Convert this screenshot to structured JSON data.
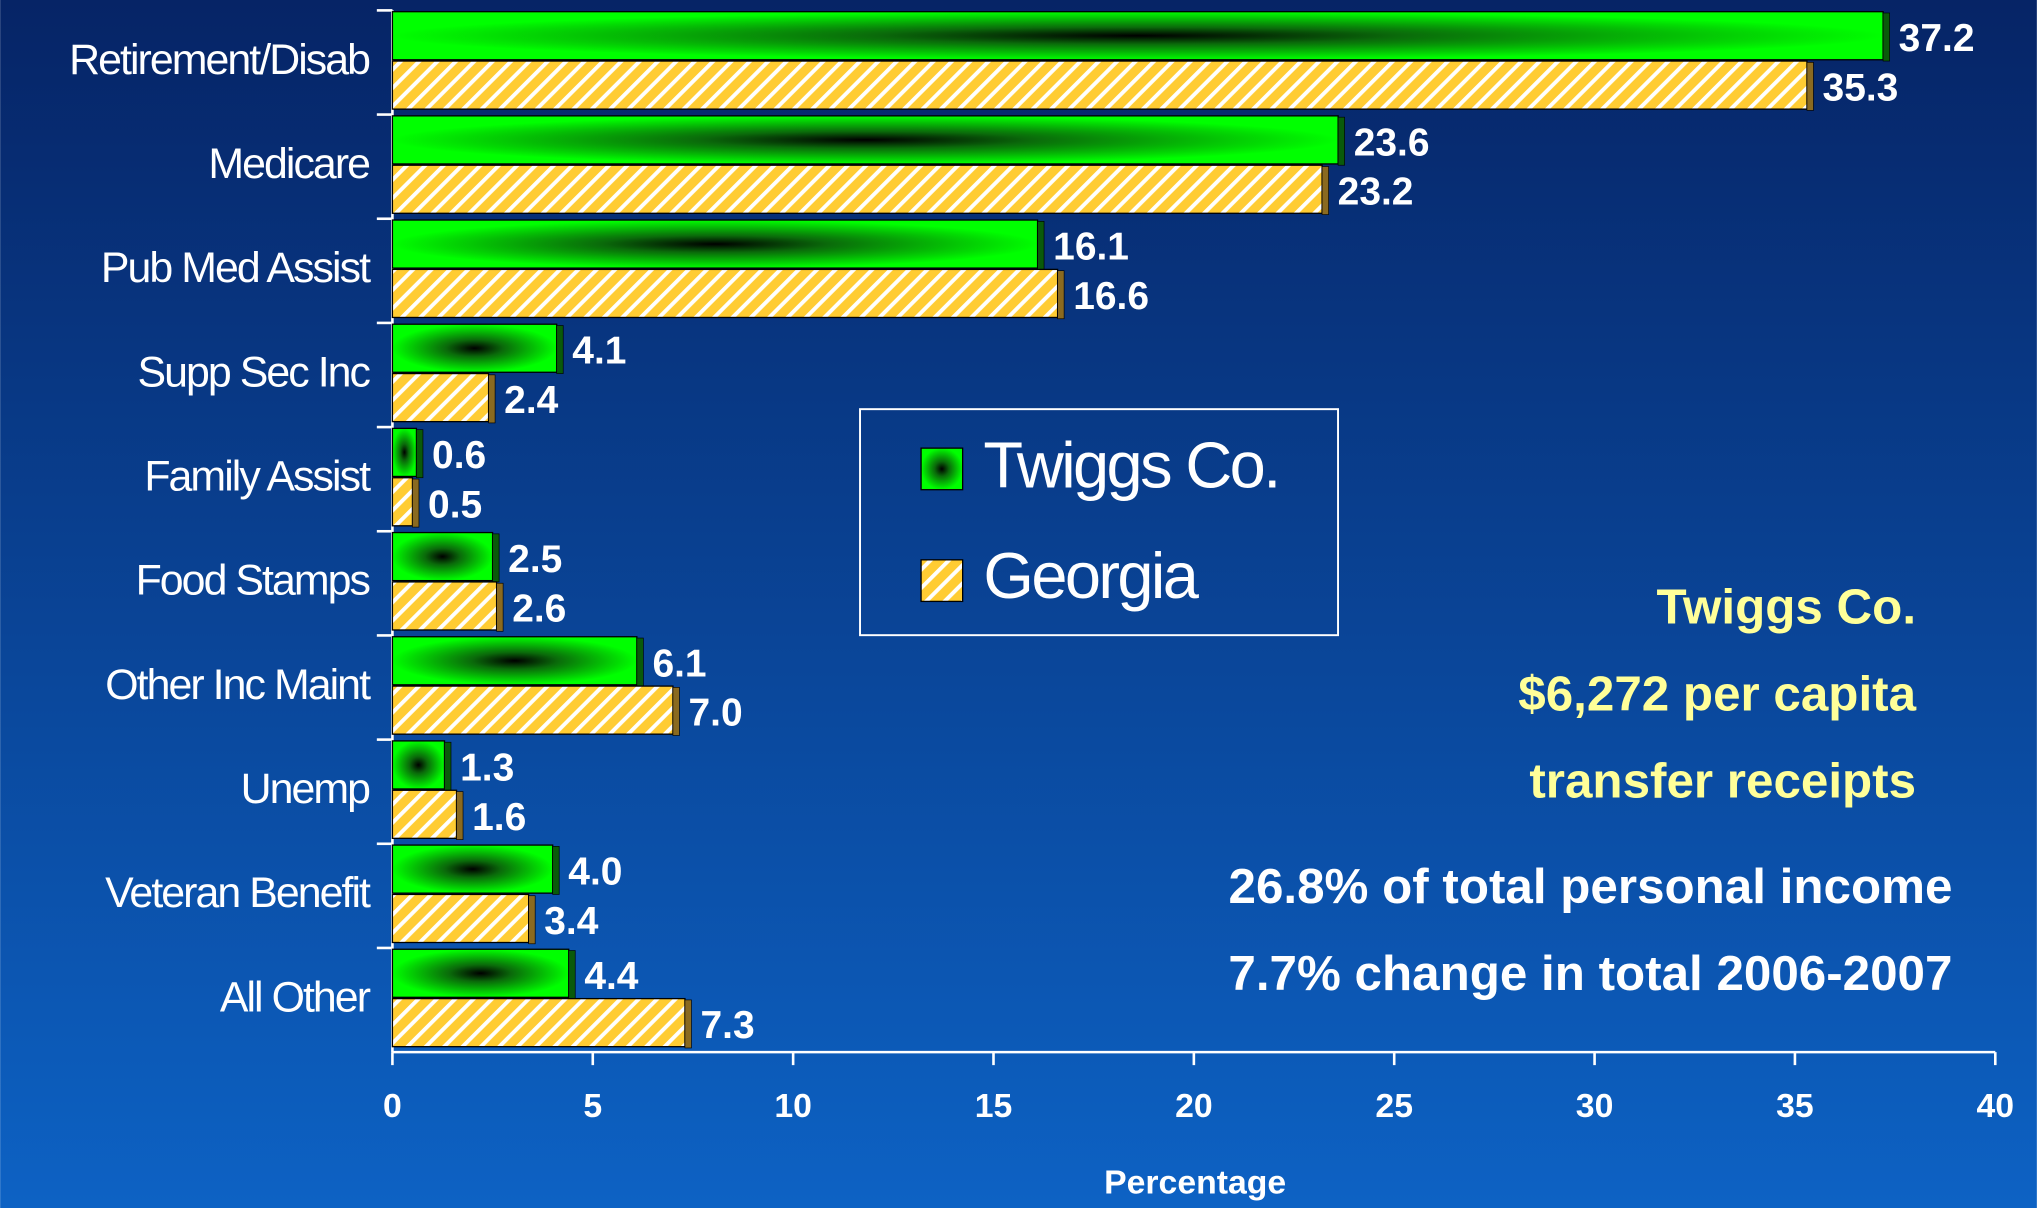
{
  "chart_data": {
    "type": "hbar",
    "categories": [
      "Retirement/Disab",
      "Medicare",
      "Pub Med Assist",
      "Supp Sec Inc",
      "Family Assist",
      "Food Stamps",
      "Other Inc Maint",
      "Unemp",
      "Veteran Benefit",
      "All Other"
    ],
    "series": [
      {
        "name": "Twiggs Co.",
        "color": "#00ff00",
        "values": [
          37.2,
          23.6,
          16.1,
          4.1,
          0.6,
          2.5,
          6.1,
          1.3,
          4.0,
          4.4
        ],
        "value_labels": [
          "37.2",
          "23.6",
          "16.1",
          "4.1",
          "0.6",
          "2.5",
          "6.1",
          "1.3",
          "4.0",
          "4.4"
        ]
      },
      {
        "name": "Georgia",
        "color": "#ffcc33",
        "values": [
          35.3,
          23.2,
          16.6,
          2.4,
          0.5,
          2.6,
          7.0,
          1.6,
          3.4,
          7.3
        ],
        "value_labels": [
          "35.3",
          "23.2",
          "16.6",
          "2.4",
          "0.5",
          "2.6",
          "7.0",
          "1.6",
          "3.4",
          "7.3"
        ]
      }
    ],
    "xlabel": "Percentage",
    "xlim": [
      0,
      40
    ],
    "xticks": [
      0,
      5,
      10,
      15,
      20,
      25,
      30,
      35,
      40
    ],
    "annotations": [
      "Twiggs Co.",
      "$6,272 per capita",
      "transfer receipts",
      "26.8% of total personal income",
      "7.7% change in total 2006-2007"
    ],
    "legend": "center"
  }
}
